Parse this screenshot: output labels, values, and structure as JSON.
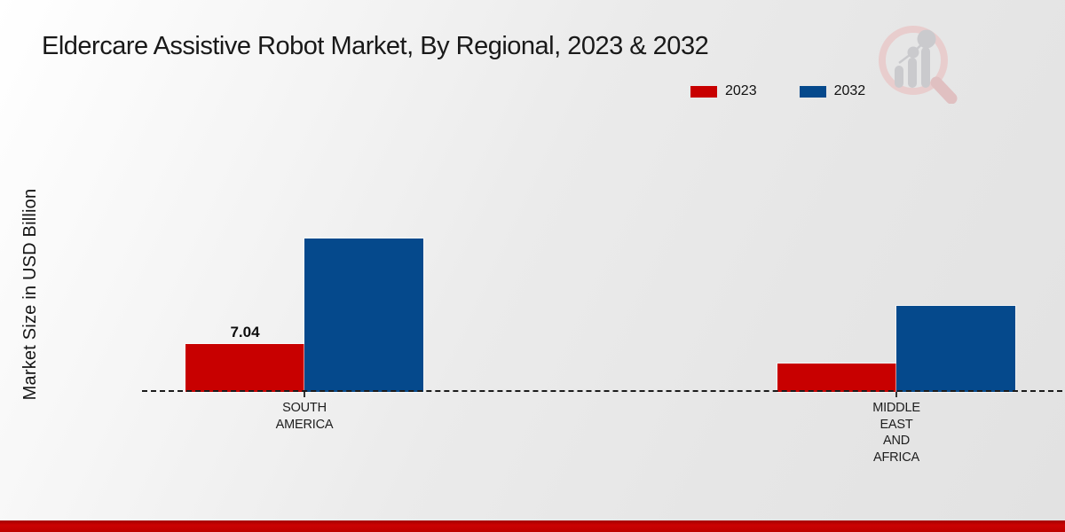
{
  "chart_data": {
    "type": "bar",
    "title": "Eldercare Assistive Robot Market, By Regional, 2023 & 2032",
    "ylabel": "Market Size in USD Billion",
    "xlabel": "",
    "categories": [
      "South America",
      "Middle East and Africa"
    ],
    "category_tick_lines": [
      [
        "SOUTH",
        "AMERICA"
      ],
      [
        "MIDDLE",
        "EAST",
        "AND",
        "AFRICA"
      ]
    ],
    "series": [
      {
        "name": "2023",
        "color": "#c80000",
        "values": [
          7.04,
          4.2
        ],
        "value_labels": [
          "7.04",
          null
        ]
      },
      {
        "name": "2032",
        "color": "#05498c",
        "values": [
          22.5,
          12.6
        ],
        "value_labels": [
          null,
          null
        ]
      }
    ],
    "ylim": [
      0,
      25
    ],
    "grid": false,
    "legend_position": "top-right",
    "baseline_style": "dashed"
  },
  "branding": {
    "logo_icon": "magnifier-bar-chart-logo",
    "footer_bar_color": "#c00000"
  }
}
